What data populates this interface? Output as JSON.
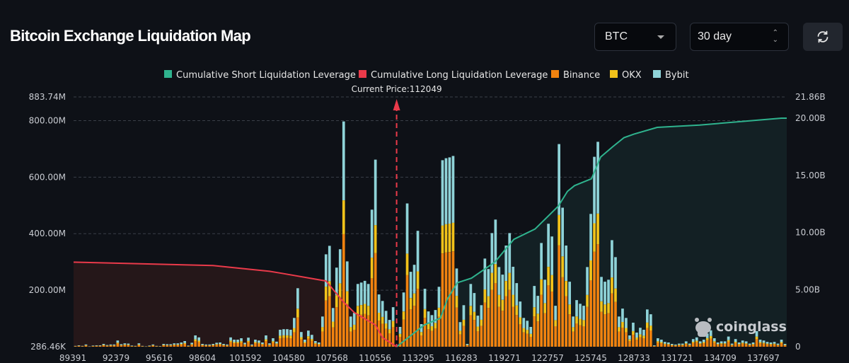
{
  "header": {
    "title": "Bitcoin Exchange Liquidation Map",
    "coin_select": "BTC",
    "range_select": "30 day",
    "refresh_icon": "refresh-icon"
  },
  "watermark": "coinglass",
  "colors": {
    "short": "#2fb38e",
    "long": "#ea3a4a",
    "binance": "#f0820f",
    "okx": "#f2c21a",
    "bybit": "#8fd3d8",
    "bg": "#0e1117"
  },
  "chart_data": {
    "type": "bar",
    "title": "Bitcoin Exchange Liquidation Map",
    "legend": [
      "Cumulative Short Liquidation Leverage",
      "Cumulative Long Liquidation Leverage",
      "Binance",
      "OKX",
      "Bybit"
    ],
    "legend_position": "top-center",
    "current_price_label": "Current Price:112049",
    "current_price_bar_index": 91,
    "left_axis": {
      "ticks": [
        "883.74M",
        "800.00M",
        "600.00M",
        "400.00M",
        "200.00M",
        "286.46K"
      ],
      "tick_values_m": [
        883.74,
        800,
        600,
        400,
        200,
        0
      ],
      "ylim_m": [
        0,
        883.74
      ]
    },
    "right_axis": {
      "ticks": [
        "21.86B",
        "20.00B",
        "15.00B",
        "10.00B",
        "5.00B",
        "0"
      ],
      "tick_values_b": [
        21.86,
        20,
        15,
        10,
        5,
        0
      ],
      "ylim_b": [
        0,
        21.86
      ]
    },
    "x_ticks": [
      "89391",
      "92379",
      "95616",
      "98604",
      "101592",
      "104580",
      "107568",
      "110556",
      "113295",
      "116283",
      "119271",
      "122757",
      "125745",
      "128733",
      "131721",
      "134709",
      "137697"
    ],
    "grid": true,
    "bar_totals_m": [
      3,
      5,
      3,
      8,
      1,
      4,
      5,
      5,
      10,
      6,
      8,
      8,
      22,
      9,
      12,
      11,
      4,
      3,
      12,
      3,
      1,
      4,
      8,
      3,
      2,
      10,
      9,
      9,
      12,
      12,
      15,
      20,
      4,
      14,
      40,
      33,
      10,
      8,
      8,
      10,
      14,
      15,
      10,
      8,
      33,
      25,
      25,
      30,
      14,
      32,
      8,
      25,
      22,
      15,
      40,
      12,
      30,
      18,
      60,
      62,
      62,
      60,
      102,
      207,
      52,
      25,
      57,
      42,
      20,
      15,
      107,
      327,
      357,
      137,
      280,
      345,
      797,
      302,
      107,
      120,
      222,
      227,
      233,
      222,
      485,
      662,
      185,
      162,
      127,
      95,
      140,
      3,
      70,
      192,
      507,
      265,
      290,
      410,
      80,
      205,
      125,
      112,
      130,
      212,
      660,
      667,
      670,
      675,
      277,
      87,
      147,
      10,
      222,
      190,
      110,
      147,
      312,
      275,
      402,
      450,
      282,
      255,
      358,
      402,
      283,
      225,
      160,
      102,
      92,
      70,
      215,
      180,
      367,
      237,
      435,
      390,
      145,
      717,
      492,
      358,
      230,
      107,
      165,
      152,
      145,
      282,
      470,
      672,
      725,
      247,
      230,
      237,
      377,
      317,
      107,
      135,
      102,
      40,
      85,
      50,
      67,
      60,
      132,
      115,
      5,
      30,
      25,
      17,
      15,
      10,
      8,
      11,
      11,
      19,
      11,
      27,
      33,
      19,
      25,
      47,
      58,
      30,
      15,
      19,
      19,
      36,
      11,
      27,
      15,
      22,
      19,
      11,
      15,
      55,
      25,
      22,
      17,
      15,
      17,
      11,
      25,
      10
    ],
    "exchange_share": {
      "binance": 0.5,
      "okx": 0.15,
      "bybit": 0.35
    },
    "cumulative_long_b": [
      [
        0,
        7.4
      ],
      [
        39,
        7.1
      ],
      [
        55,
        6.6
      ],
      [
        59,
        6.4
      ],
      [
        71,
        5.75
      ],
      [
        76,
        3.9
      ],
      [
        79,
        3.0
      ],
      [
        85,
        1.9
      ],
      [
        87,
        0.8
      ],
      [
        91,
        0
      ]
    ],
    "cumulative_short_b": [
      [
        91,
        0
      ],
      [
        98.8,
        1.9
      ],
      [
        103.4,
        2.5
      ],
      [
        105.4,
        4.2
      ],
      [
        108.2,
        5.6
      ],
      [
        112.2,
        6.0
      ],
      [
        118.8,
        7.4
      ],
      [
        124.2,
        9.4
      ],
      [
        130.2,
        10.3
      ],
      [
        136.8,
        12.3
      ],
      [
        139.4,
        13.6
      ],
      [
        141.4,
        14.1
      ],
      [
        146.2,
        14.7
      ],
      [
        148.8,
        16.6
      ],
      [
        152.2,
        17.5
      ],
      [
        155.4,
        18.3
      ],
      [
        158.2,
        18.6
      ],
      [
        164.8,
        19.2
      ],
      [
        176.8,
        19.4
      ],
      [
        200,
        20.0
      ]
    ]
  }
}
